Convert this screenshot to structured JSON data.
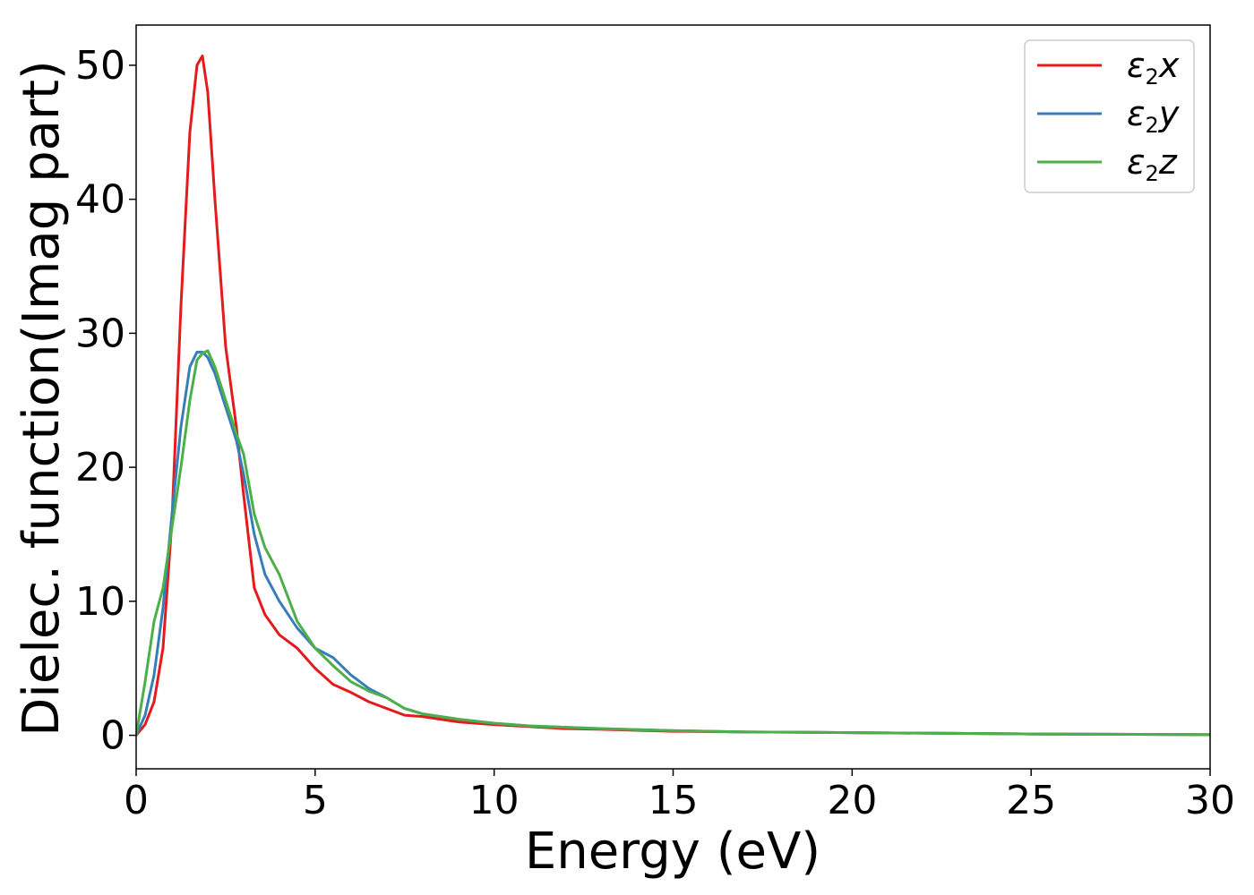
{
  "chart_data": {
    "type": "line",
    "title": "",
    "xlabel": "Energy (eV)",
    "ylabel": "Dielec. function(Imag part)",
    "xlim": [
      0,
      30
    ],
    "ylim": [
      -2.5,
      53
    ],
    "xticks": [
      0,
      5,
      10,
      15,
      20,
      25,
      30
    ],
    "xtick_labels": [
      "0",
      "5",
      "10",
      "15",
      "20",
      "25",
      "30"
    ],
    "yticks": [
      0,
      10,
      20,
      30,
      40,
      50
    ],
    "ytick_labels": [
      "0",
      "10",
      "20",
      "30",
      "40",
      "50"
    ],
    "grid": false,
    "legend_position": "top-right",
    "series": [
      {
        "name": "ε2x",
        "legend_main": "ε",
        "legend_sub": "2",
        "legend_var": "x",
        "color": "#e41a1c",
        "x": [
          0,
          0.25,
          0.5,
          0.75,
          1.0,
          1.25,
          1.5,
          1.7,
          1.85,
          2.0,
          2.2,
          2.5,
          2.8,
          3.0,
          3.3,
          3.6,
          4.0,
          4.5,
          5.0,
          5.5,
          6.0,
          6.5,
          7.0,
          7.5,
          8.0,
          8.5,
          9.0,
          10,
          11,
          12,
          13,
          15,
          17,
          20,
          25,
          30
        ],
        "y": [
          0,
          0.8,
          2.5,
          6.5,
          16,
          32,
          45,
          50,
          50.7,
          48,
          40,
          29,
          23,
          18,
          11,
          9,
          7.5,
          6.5,
          5,
          3.8,
          3.2,
          2.5,
          2.0,
          1.5,
          1.4,
          1.2,
          1.0,
          0.8,
          0.65,
          0.5,
          0.45,
          0.3,
          0.25,
          0.2,
          0.1,
          0.05
        ]
      },
      {
        "name": "ε2y",
        "legend_main": "ε",
        "legend_sub": "2",
        "legend_var": "y",
        "color": "#377eb8",
        "x": [
          0,
          0.25,
          0.5,
          0.75,
          1.0,
          1.25,
          1.5,
          1.7,
          1.85,
          2.0,
          2.2,
          2.5,
          2.8,
          3.0,
          3.3,
          3.6,
          4.0,
          4.5,
          5.0,
          5.5,
          6.0,
          6.5,
          7.0,
          7.5,
          8.0,
          8.5,
          9.0,
          10,
          11,
          12,
          13,
          15,
          17,
          20,
          25,
          30
        ],
        "y": [
          0,
          1.5,
          4.5,
          9.5,
          16.5,
          23,
          27.5,
          28.6,
          28.6,
          28.2,
          27.0,
          24.5,
          22.0,
          19.5,
          15.0,
          12.0,
          10.0,
          8.0,
          6.5,
          5.8,
          4.5,
          3.5,
          2.8,
          2.0,
          1.6,
          1.4,
          1.2,
          0.9,
          0.7,
          0.6,
          0.5,
          0.35,
          0.25,
          0.2,
          0.1,
          0.05
        ]
      },
      {
        "name": "ε2z",
        "legend_main": "ε",
        "legend_sub": "2",
        "legend_var": "z",
        "color": "#4daf4a",
        "x": [
          0,
          0.25,
          0.5,
          0.75,
          1.0,
          1.25,
          1.5,
          1.7,
          1.85,
          2.0,
          2.2,
          2.5,
          2.8,
          3.0,
          3.3,
          3.6,
          4.0,
          4.5,
          5.0,
          5.5,
          6.0,
          6.5,
          7.0,
          7.5,
          8.0,
          8.5,
          9.0,
          10,
          11,
          12,
          13,
          15,
          17,
          20,
          25,
          30
        ],
        "y": [
          0,
          4.0,
          8.5,
          11.0,
          15.5,
          20.0,
          25.0,
          28.0,
          28.5,
          28.7,
          27.5,
          25.0,
          22.5,
          21.0,
          16.5,
          14.0,
          12.0,
          8.5,
          6.5,
          5.2,
          4.0,
          3.3,
          2.8,
          2.0,
          1.6,
          1.4,
          1.2,
          0.9,
          0.7,
          0.6,
          0.5,
          0.35,
          0.25,
          0.2,
          0.1,
          0.05
        ]
      }
    ]
  }
}
